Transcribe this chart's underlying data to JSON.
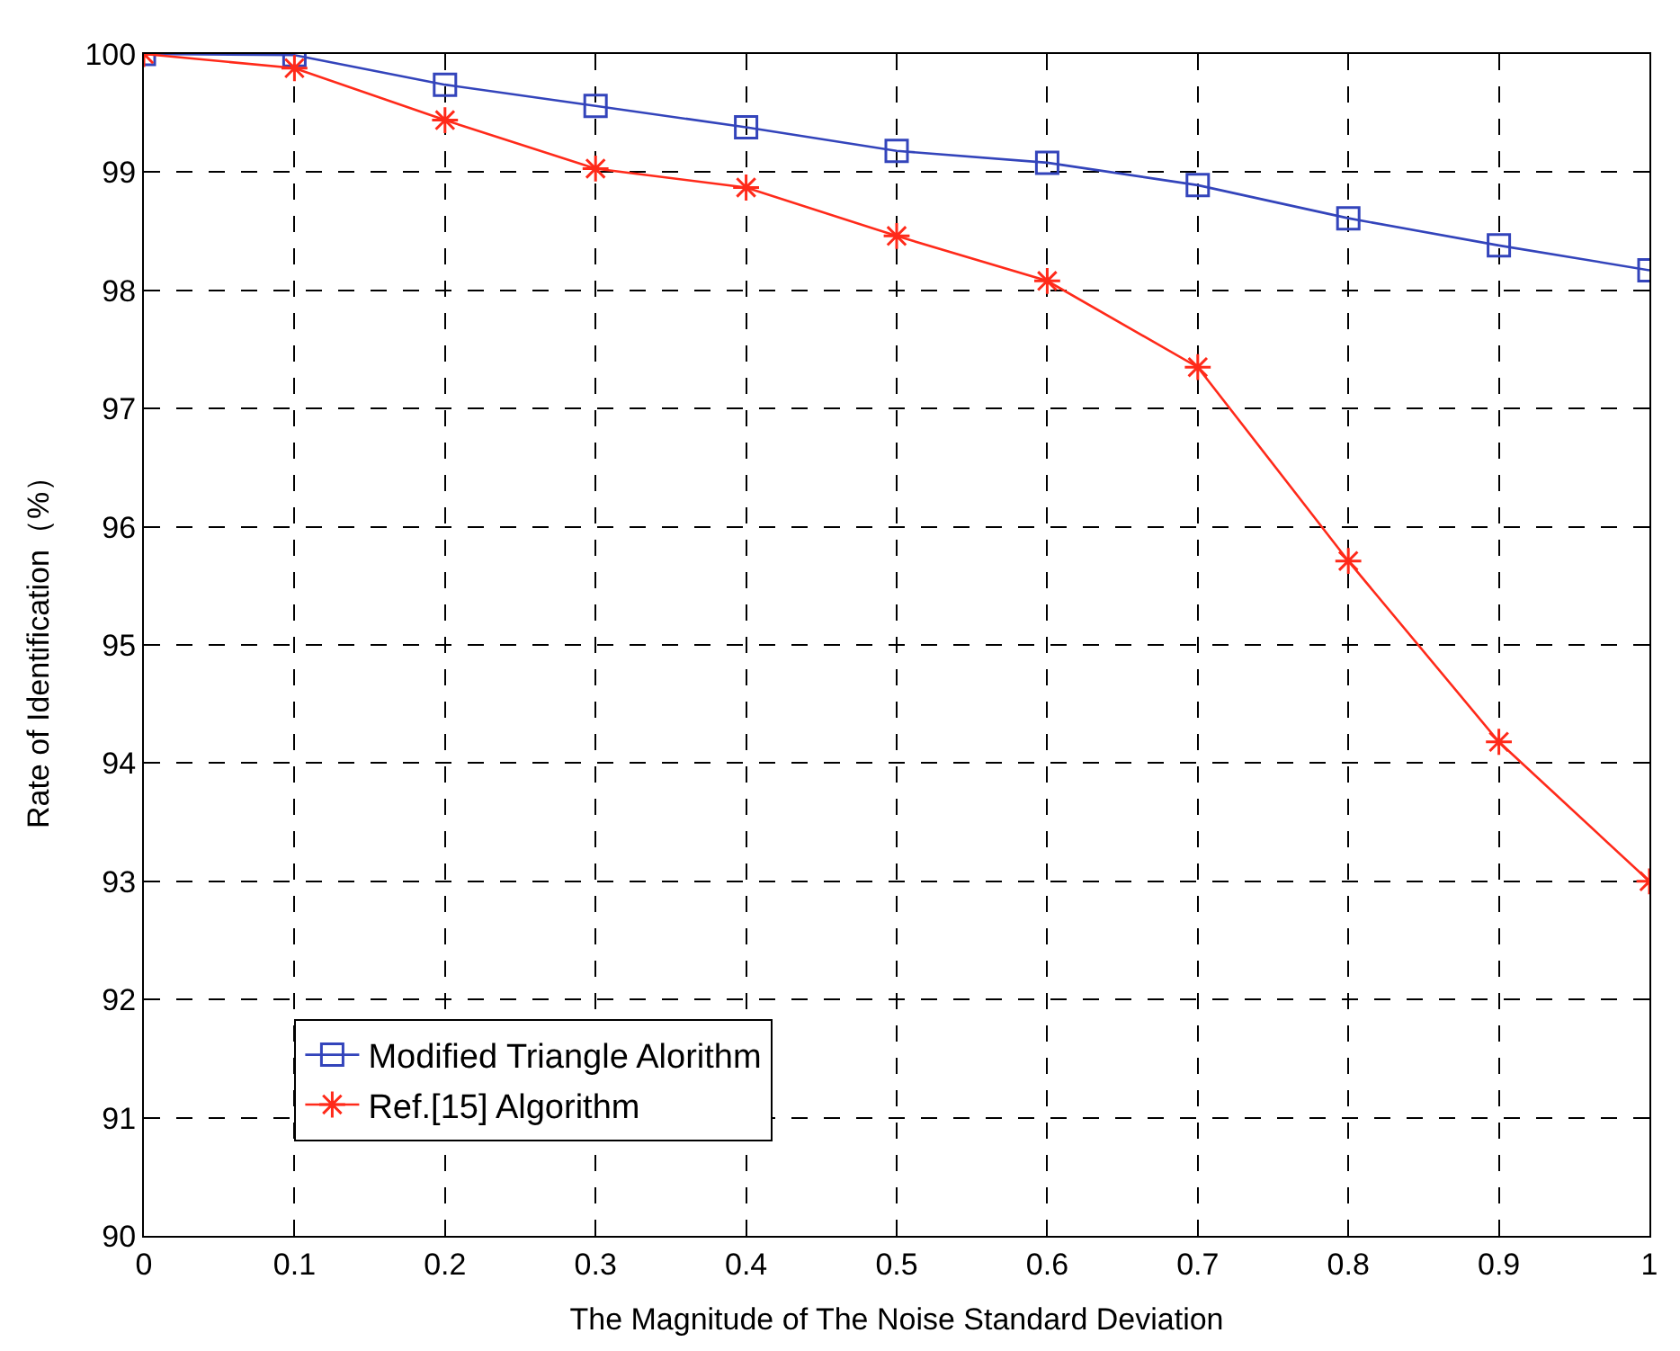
{
  "chart_data": {
    "type": "line",
    "xlabel": "The Magnitude of The Noise Standard Deviation",
    "ylabel": "Rate of Identification（%）",
    "x": [
      0,
      0.1,
      0.2,
      0.3,
      0.4,
      0.5,
      0.6,
      0.7,
      0.8,
      0.9,
      1
    ],
    "series": [
      {
        "name": "Modified Triangle Alorithm",
        "color": "#3344bb",
        "marker": "square",
        "values": [
          100,
          99.99,
          99.74,
          99.56,
          99.38,
          99.18,
          99.08,
          98.89,
          98.61,
          98.38,
          98.17
        ]
      },
      {
        "name": "Ref.[15] Algorithm",
        "color": "#ff2a1a",
        "marker": "cross",
        "values": [
          100,
          99.88,
          99.44,
          99.03,
          98.87,
          98.46,
          98.08,
          97.35,
          95.71,
          94.18,
          93.0
        ]
      }
    ],
    "xlim": [
      0,
      1
    ],
    "xticks": [
      0,
      0.1,
      0.2,
      0.3,
      0.4,
      0.5,
      0.6,
      0.7,
      0.8,
      0.9,
      1
    ],
    "ylim": [
      90,
      100
    ],
    "yticks": [
      90,
      91,
      92,
      93,
      94,
      95,
      96,
      97,
      98,
      99,
      100
    ],
    "grid": true,
    "legend": "bottom left",
    "line_style": "solid"
  }
}
